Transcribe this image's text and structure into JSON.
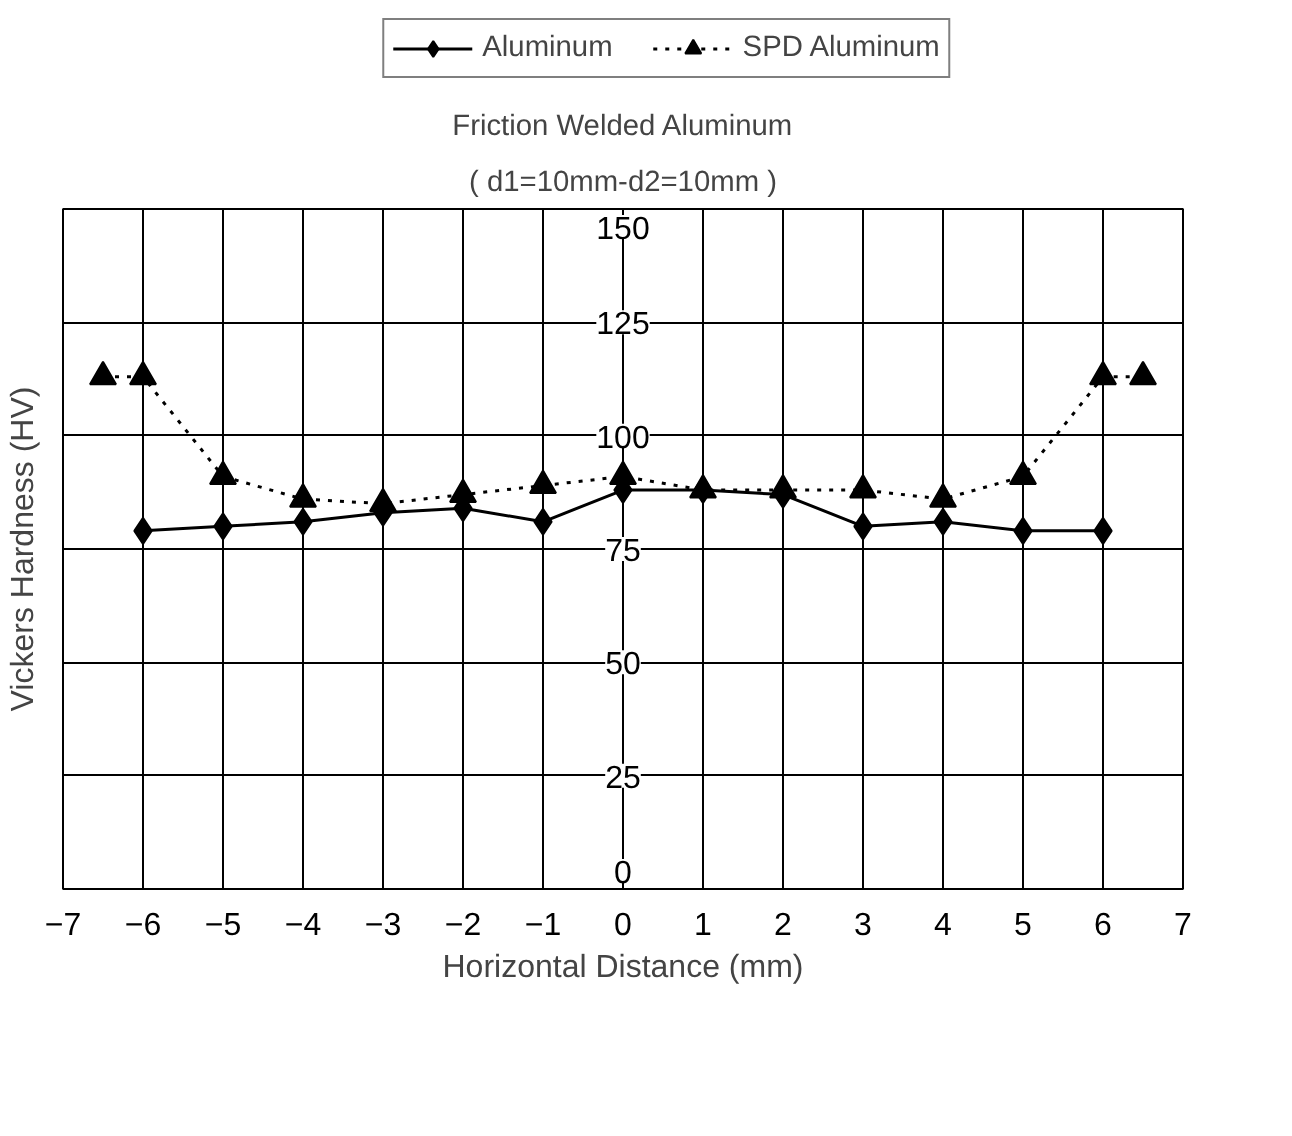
{
  "chart_data": {
    "type": "line",
    "title": "Friction Welded Aluminum",
    "subtitle": "( d1=10mm-d2=10mm )",
    "xlabel": "Horizontal Distance (mm)",
    "ylabel": "Vickers Hardness (HV)",
    "xlim": [
      -7,
      7
    ],
    "xticks": [
      -7,
      -6,
      -5,
      -4,
      -3,
      -2,
      -1,
      0,
      1,
      2,
      3,
      4,
      5,
      6,
      7
    ],
    "ylim": [
      0,
      150
    ],
    "yticks": [
      0,
      25,
      50,
      75,
      100,
      125,
      150
    ],
    "grid": true,
    "legend": "top",
    "series": [
      {
        "name": "Aluminum",
        "color": "#000000",
        "marker": "diamond",
        "line_style": "solid",
        "x": [
          -6,
          -5,
          -4,
          -3,
          -2,
          -1,
          0,
          1,
          2,
          3,
          4,
          5,
          6
        ],
        "values": [
          79,
          80,
          81,
          83,
          84,
          81,
          88,
          88,
          87,
          80,
          81,
          79,
          79
        ]
      },
      {
        "name": "SPD Aluminum",
        "color": "#000000",
        "marker": "triangle",
        "line_style": "dotted",
        "x": [
          -6.5,
          -6,
          -5,
          -4,
          -3,
          -2,
          -1,
          0,
          1,
          2,
          3,
          4,
          5,
          6,
          6.5
        ],
        "values": [
          113,
          113,
          91,
          86,
          85,
          87,
          89,
          91,
          88,
          88,
          88,
          86,
          91,
          113,
          113
        ]
      }
    ]
  }
}
